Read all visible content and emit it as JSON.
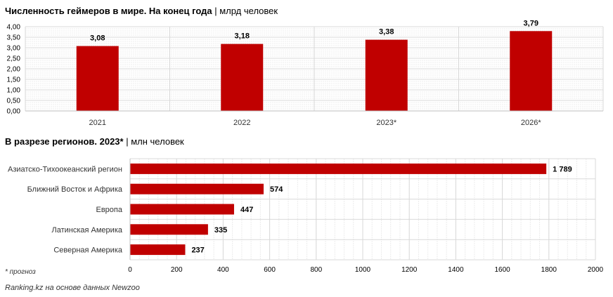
{
  "chart_data": [
    {
      "type": "bar",
      "title": "Численность геймеров в мире. На конец года",
      "unit": "млрд человек",
      "categories": [
        "2021",
        "2022",
        "2023*",
        "2026*"
      ],
      "values": [
        3.08,
        3.18,
        3.38,
        3.79
      ],
      "value_labels": [
        "3,08",
        "3,18",
        "3,38",
        "3,79"
      ],
      "ylim": [
        0,
        4
      ],
      "yticks": [
        "0,00",
        "0,50",
        "1,00",
        "1,50",
        "2,00",
        "2,50",
        "3,00",
        "3,50",
        "4,00"
      ],
      "grid": true,
      "color": "#c00000"
    },
    {
      "type": "bar",
      "orientation": "horizontal",
      "title": "В разрезе регионов. 2023*",
      "unit": "млн человек",
      "categories": [
        "Азиатско-Тихоокеанский регион",
        "Ближний Восток и Африка",
        "Европа",
        "Латинская Америка",
        "Северная Америка"
      ],
      "values": [
        1789,
        574,
        447,
        335,
        237
      ],
      "value_labels": [
        "1 789",
        "574",
        "447",
        "335",
        "237"
      ],
      "xlim": [
        0,
        2000
      ],
      "xticks": [
        "0",
        "200",
        "400",
        "600",
        "800",
        "1000",
        "1200",
        "1400",
        "1600",
        "1800",
        "2000"
      ],
      "grid": true,
      "color": "#c00000"
    }
  ],
  "footnote": "* прогноз",
  "source": "Ranking.kz на основе данных Newzoo"
}
